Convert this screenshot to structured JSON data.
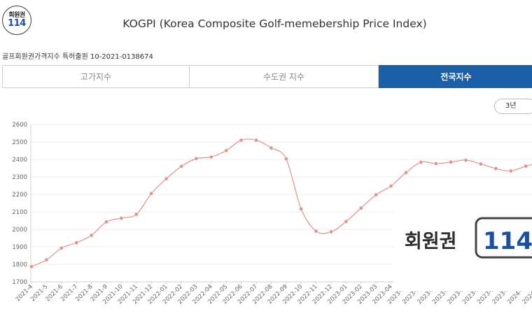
{
  "header": {
    "logo_top": "회원권",
    "logo_bottom": "114",
    "title": "KOGPI (Korea Composite Golf-memebership Price Index)",
    "patent": "골프회원권가격지수 특허출원 10-2021-0138674"
  },
  "tabs": [
    {
      "label": "고가지수",
      "active": false
    },
    {
      "label": "수도권 지수",
      "active": false
    },
    {
      "label": "전국지수",
      "active": true
    }
  ],
  "period_select": {
    "label": "3년"
  },
  "watermark": {
    "text": "회원권",
    "number": "114"
  },
  "colors": {
    "line": "#e2928a",
    "accent": "#1a5fa8"
  },
  "chart_data": {
    "type": "line",
    "title": "",
    "xlabel": "",
    "ylabel": "",
    "ylim": [
      1700,
      2600
    ],
    "yticks": [
      1700,
      1800,
      1900,
      2000,
      2100,
      2200,
      2300,
      2400,
      2500,
      2600
    ],
    "grid": true,
    "categories": [
      "2021-4",
      "2021-5",
      "2021-6",
      "2021-7",
      "2021-8",
      "2021-9",
      "2021-10",
      "2021-11",
      "2021-12",
      "2022-01",
      "2022-02",
      "2022-03",
      "2022-04",
      "2022-05",
      "2022-06",
      "2022-07",
      "2022-08",
      "2022-09",
      "2022-10",
      "2022-11",
      "2022-12",
      "2023-01",
      "2023-02",
      "2023-03",
      "2023-04",
      "2023-05",
      "2023-06",
      "2023-07",
      "2023-08",
      "2023-09",
      "2023-10",
      "2023-11",
      "2023-12",
      "2024-01",
      "2024-02"
    ],
    "series": [
      {
        "values": [
          1787,
          1826,
          1893,
          1924,
          1966,
          2043,
          2064,
          2086,
          2205,
          2290,
          2360,
          2405,
          2414,
          2451,
          2510,
          2510,
          2466,
          2403,
          2117,
          1990,
          1986,
          2045,
          2122,
          2198,
          2248,
          2325,
          2384,
          2376,
          2385,
          2396,
          2374,
          2348,
          2334,
          2362,
          2384
        ]
      }
    ]
  }
}
